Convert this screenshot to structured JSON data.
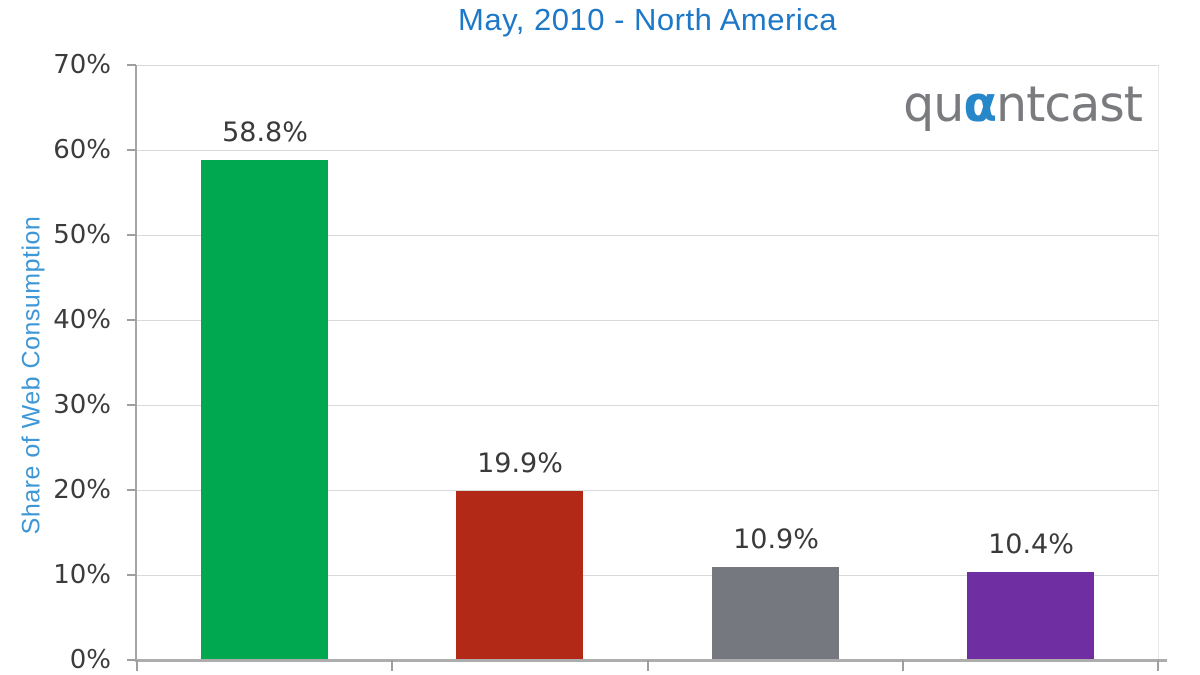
{
  "title": "May, 2010 - North America",
  "logo": {
    "qu": "qu",
    "alpha": "α",
    "ntcast": "ntcast"
  },
  "colors": {
    "title_blue": "#1E78C8",
    "axis_title_blue": "#3E97D6",
    "label_dark": "#3A3A3A",
    "gridline_gray": "#D9D9D9",
    "axis_gray": "#A6A6A6",
    "logo_gray": "#7A7B7E",
    "logo_blue": "#2787C9"
  },
  "chart_data": {
    "type": "bar",
    "title": "May, 2010 - North America",
    "xlabel": "",
    "ylabel": "Share of Web Consumption",
    "categories": [
      "",
      "",
      "",
      ""
    ],
    "values": [
      58.8,
      19.9,
      10.9,
      10.4
    ],
    "value_labels": [
      "58.8%",
      "19.9%",
      "10.9%",
      "10.4%"
    ],
    "bar_colors": [
      "#00A94F",
      "#B22A17",
      "#75787E",
      "#6F2FA3"
    ],
    "ylim": [
      0,
      70
    ],
    "yticks": [
      0,
      10,
      20,
      30,
      40,
      50,
      60,
      70
    ],
    "ytick_labels": [
      "0%",
      "10%",
      "20%",
      "30%",
      "40%",
      "50%",
      "60%",
      "70%"
    ],
    "grid": "horizontal",
    "legend": "none"
  }
}
